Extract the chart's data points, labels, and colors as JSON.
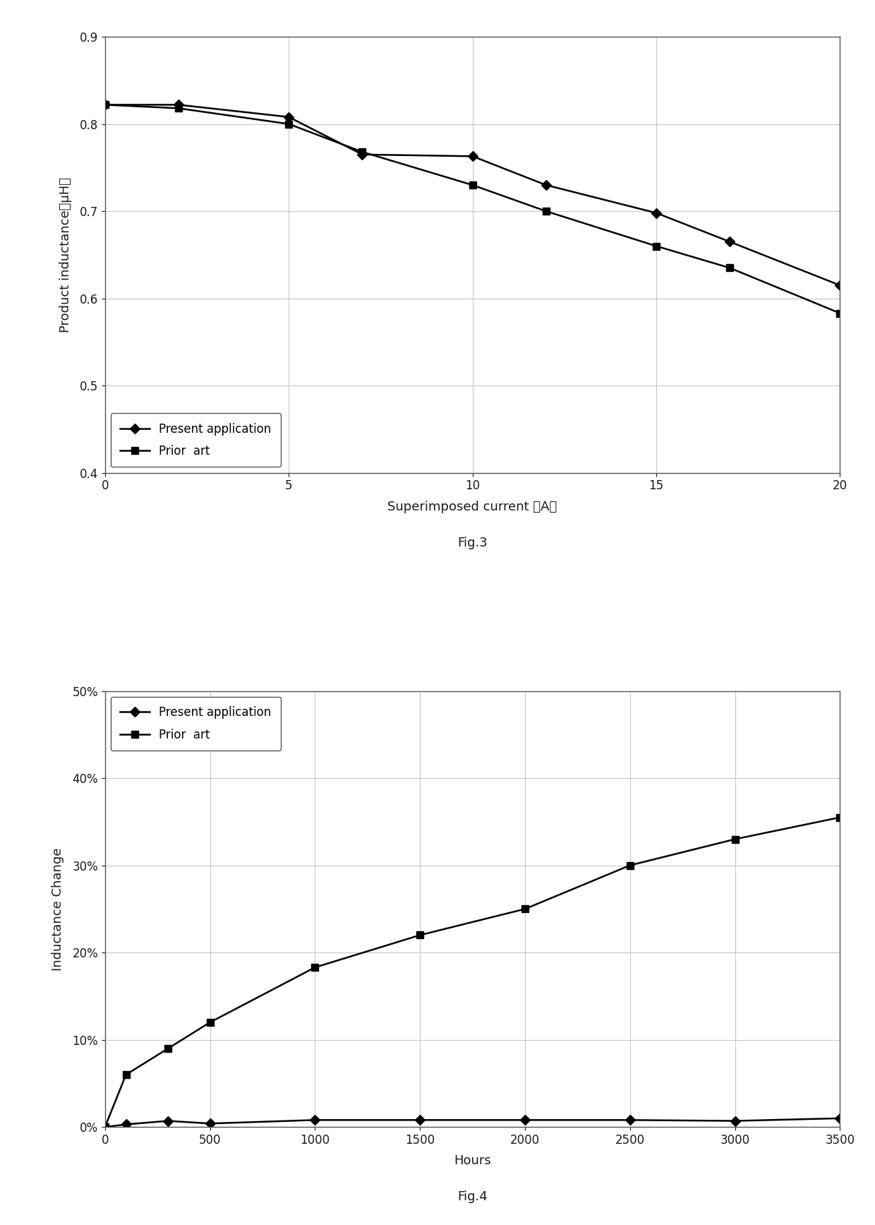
{
  "fig3": {
    "present_x": [
      0,
      2,
      5,
      7,
      10,
      12,
      15,
      17,
      20
    ],
    "present_y": [
      0.822,
      0.822,
      0.808,
      0.765,
      0.763,
      0.73,
      0.698,
      0.665,
      0.615
    ],
    "prior_x": [
      0,
      2,
      5,
      7,
      10,
      12,
      15,
      17,
      20
    ],
    "prior_y": [
      0.822,
      0.818,
      0.8,
      0.768,
      0.73,
      0.7,
      0.66,
      0.635,
      0.583
    ],
    "xlabel": "Superimposed current （A）",
    "ylabel": "Product inductance（μH）",
    "ylim": [
      0.4,
      0.9
    ],
    "xlim": [
      0,
      20
    ],
    "yticks": [
      0.4,
      0.5,
      0.6,
      0.7,
      0.8,
      0.9
    ],
    "xticks": [
      0,
      5,
      10,
      15,
      20
    ],
    "legend1": "Present application",
    "legend2": "Prior  art",
    "fig_label": "Fig.3",
    "grid_color": "#c8c8c8"
  },
  "fig4": {
    "present_x": [
      0,
      100,
      300,
      500,
      1000,
      1500,
      2000,
      2500,
      3000,
      3500
    ],
    "present_y": [
      0.0,
      0.003,
      0.007,
      0.004,
      0.008,
      0.008,
      0.008,
      0.008,
      0.007,
      0.01
    ],
    "prior_x": [
      0,
      100,
      300,
      500,
      1000,
      1500,
      2000,
      2500,
      3000,
      3500
    ],
    "prior_y": [
      0.0,
      0.06,
      0.09,
      0.12,
      0.183,
      0.22,
      0.25,
      0.3,
      0.33,
      0.355
    ],
    "xlabel": "Hours",
    "ylabel": "Inductance Change",
    "ylim": [
      0.0,
      0.5
    ],
    "xlim": [
      0,
      3500
    ],
    "yticks": [
      0.0,
      0.1,
      0.2,
      0.3,
      0.4,
      0.5
    ],
    "xticks": [
      0,
      500,
      1000,
      1500,
      2000,
      2500,
      3000,
      3500
    ],
    "legend1": "Present application",
    "legend2": "Prior  art",
    "fig_label": "Fig.4",
    "grid_color": "#c8c8c8"
  },
  "background_color": "#ffffff",
  "font_color": "#1a1a1a",
  "line_color": "#000000",
  "marker_diamond": "D",
  "marker_square": "s",
  "marker_size": 7,
  "line_width": 1.8,
  "font_size_label": 13,
  "font_size_tick": 12,
  "font_size_legend": 12,
  "font_size_figlabel": 13
}
